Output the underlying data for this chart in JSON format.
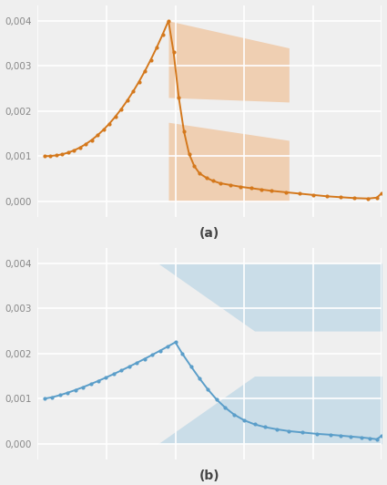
{
  "fig_width": 4.25,
  "fig_height": 5.32,
  "dpi": 100,
  "bg_color": "#efefef",
  "grid_color": "#ffffff",
  "panel_a": {
    "label": "(a)",
    "line_color": "#d4781c",
    "fill_color": "#f0a868",
    "fill_alpha": 0.45,
    "ylim": [
      -0.00035,
      0.00435
    ],
    "yticks": [
      0.0,
      0.001,
      0.002,
      0.003,
      0.004
    ],
    "yticklabels": [
      "0,000",
      "0,001",
      "0,002",
      "0,003",
      "0,004"
    ]
  },
  "panel_b": {
    "label": "(b)",
    "line_color": "#5b9ec9",
    "fill_color": "#9dc8e0",
    "fill_alpha": 0.45,
    "ylim": [
      -0.00035,
      0.00435
    ],
    "yticks": [
      0.0,
      0.001,
      0.002,
      0.003,
      0.004
    ],
    "yticklabels": [
      "0,000",
      "0,001",
      "0,002",
      "0,003",
      "0,004"
    ]
  }
}
